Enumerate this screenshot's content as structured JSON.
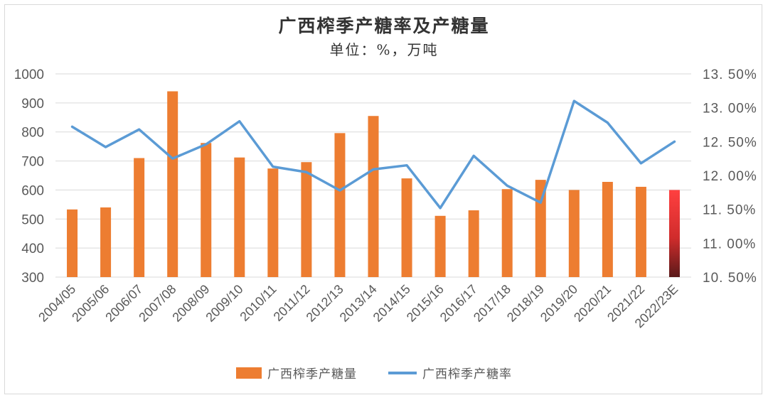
{
  "chart_data": {
    "type": "bar+line",
    "title": "广西榨季产糖率及产糖量",
    "subtitle": "单位：%，万吨",
    "categories": [
      "2004/05",
      "2005/06",
      "2006/07",
      "2007/08",
      "2008/09",
      "2009/10",
      "2010/11",
      "2011/12",
      "2012/13",
      "2013/14",
      "2014/15",
      "2015/16",
      "2016/17",
      "2017/18",
      "2018/19",
      "2019/20",
      "2020/21",
      "2021/22",
      "2022/23E"
    ],
    "series": [
      {
        "name": "广西榨季产糖量",
        "type": "bar",
        "axis": "left",
        "color": "#ED7D31",
        "highlight_last_color": "#FF4040",
        "values": [
          533,
          540,
          710,
          940,
          762,
          712,
          674,
          696,
          796,
          855,
          640,
          511,
          530,
          603,
          635,
          600,
          628,
          611,
          600
        ]
      },
      {
        "name": "广西榨季产糖率",
        "type": "line",
        "axis": "right",
        "color": "#5B9BD5",
        "values": [
          12.72,
          12.42,
          12.68,
          12.25,
          12.46,
          12.8,
          12.13,
          12.05,
          11.78,
          12.09,
          12.15,
          11.52,
          12.29,
          11.85,
          11.6,
          13.1,
          12.78,
          12.18,
          12.5
        ]
      }
    ],
    "y_left": {
      "min": 300,
      "max": 1000,
      "ticks": [
        "300",
        "400",
        "500",
        "600",
        "700",
        "800",
        "900",
        "1000"
      ]
    },
    "y_right": {
      "min": 10.5,
      "max": 13.5,
      "ticks": [
        "10. 50%",
        "11. 00%",
        "11. 50%",
        "12. 00%",
        "12. 50%",
        "13. 00%",
        "13. 50%"
      ]
    },
    "grid": true,
    "legend": "bottom"
  }
}
